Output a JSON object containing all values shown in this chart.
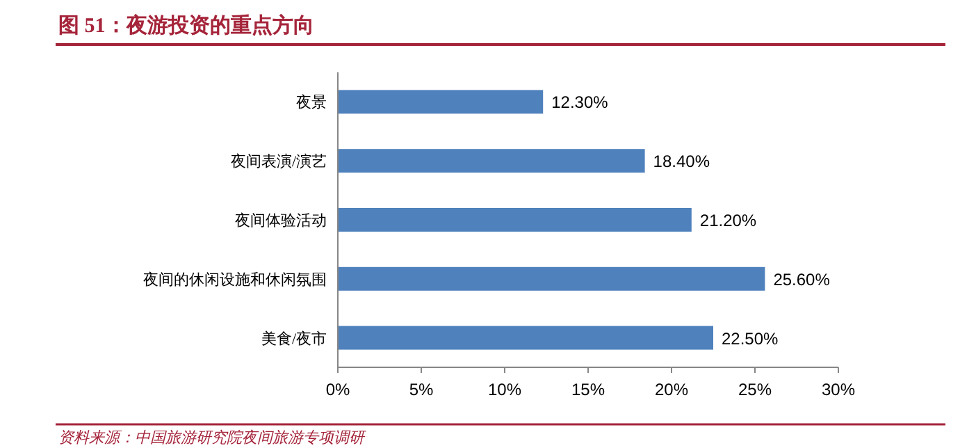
{
  "chart_data": {
    "type": "bar",
    "orientation": "horizontal",
    "title": "图 51：夜游投资的重点方向",
    "categories": [
      "夜景",
      "夜间表演/演艺",
      "夜间体验活动",
      "夜间的休闲设施和休闲氛围",
      "美食/夜市"
    ],
    "values": [
      12.3,
      18.4,
      21.2,
      25.6,
      22.5
    ],
    "value_labels": [
      "12.30%",
      "18.40%",
      "21.20%",
      "25.60%",
      "22.50%"
    ],
    "color": "#4f81bd",
    "xlim": [
      0,
      30
    ],
    "xticks": [
      {
        "value": 0,
        "label": "0%"
      },
      {
        "value": 5,
        "label": "5%"
      },
      {
        "value": 10,
        "label": "10%"
      },
      {
        "value": 15,
        "label": "15%"
      },
      {
        "value": 20,
        "label": "20%"
      },
      {
        "value": 25,
        "label": "25%"
      },
      {
        "value": 30,
        "label": "30%"
      }
    ],
    "annotations": [
      "资料来源：中国旅游研究院夜间旅游专项调研"
    ]
  }
}
